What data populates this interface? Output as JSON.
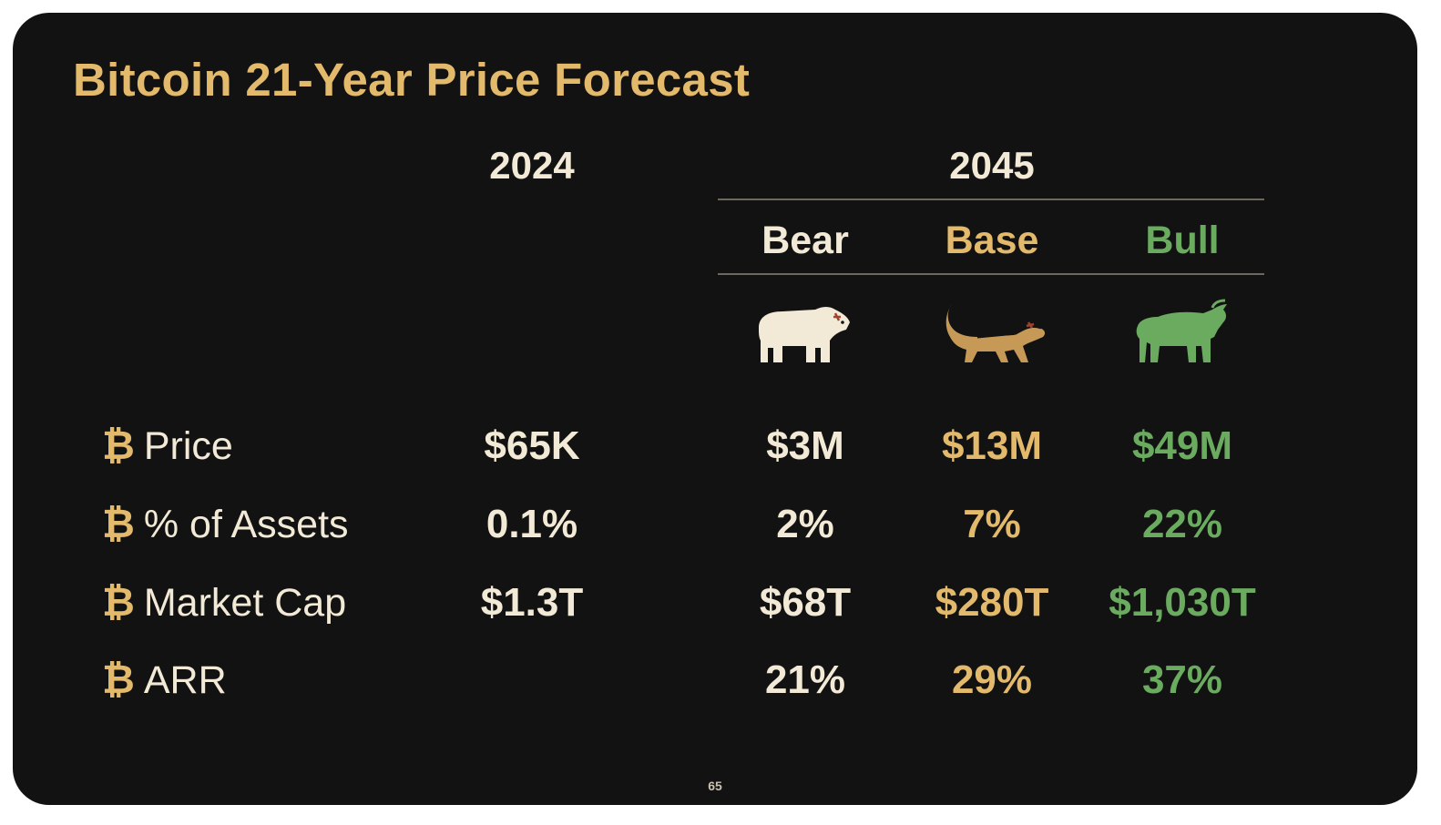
{
  "title": "Bitcoin 21-Year Price Forecast",
  "page_number": "65",
  "colors": {
    "background": "#121212",
    "title": "#e3b96c",
    "bear": "#f2ead6",
    "base": "#e3b96c",
    "bull": "#6aab5f",
    "label": "#f2ead6",
    "btc_symbol": "#e3b96c"
  },
  "header": {
    "year_current": "2024",
    "year_forecast": "2045",
    "scenarios": [
      "Bear",
      "Base",
      "Bull"
    ]
  },
  "icons": {
    "bear": "bear-icon",
    "base": "honey-badger-icon",
    "bull": "bull-icon"
  },
  "rows": [
    {
      "label": "Price",
      "y2024": "$65K",
      "bear": "$3M",
      "base": "$13M",
      "bull": "$49M"
    },
    {
      "label": "% of Assets",
      "y2024": "0.1%",
      "bear": "2%",
      "base": "7%",
      "bull": "22%"
    },
    {
      "label": "Market Cap",
      "y2024": "$1.3T",
      "bear": "$68T",
      "base": "$280T",
      "bull": "$1,030T"
    },
    {
      "label": "ARR",
      "y2024": "",
      "bear": "21%",
      "base": "29%",
      "bull": "37%"
    }
  ],
  "btc_symbol": "₿",
  "chart_data": {
    "type": "table",
    "title": "Bitcoin 21-Year Price Forecast",
    "columns": [
      "",
      "2024",
      "2045 Bear",
      "2045 Base",
      "2045 Bull"
    ],
    "rows": [
      [
        "Price",
        "$65K",
        "$3M",
        "$13M",
        "$49M"
      ],
      [
        "% of Assets",
        "0.1%",
        "2%",
        "7%",
        "22%"
      ],
      [
        "Market Cap",
        "$1.3T",
        "$68T",
        "$280T",
        "$1,030T"
      ],
      [
        "ARR",
        "",
        "21%",
        "29%",
        "37%"
      ]
    ]
  }
}
